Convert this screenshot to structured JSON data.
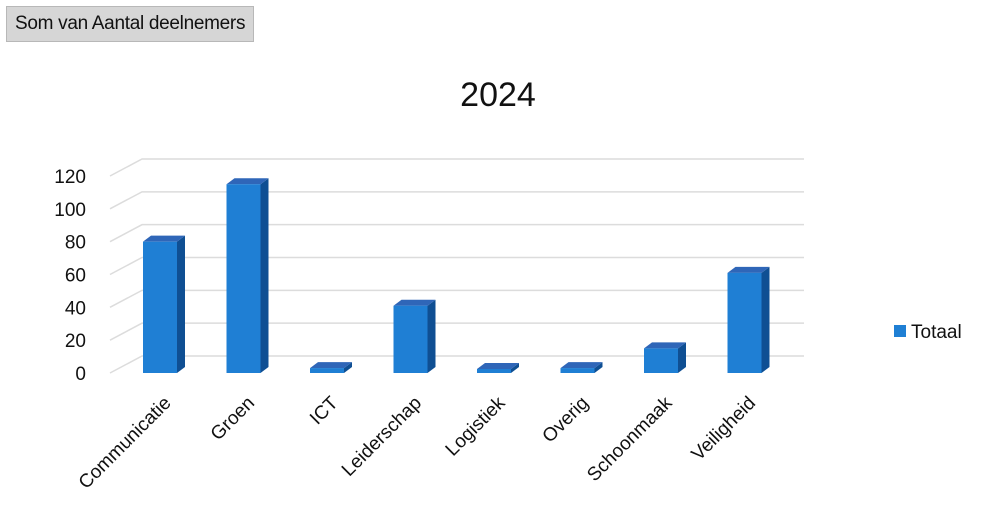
{
  "pivot_field_label": "Som van Aantal deelnemers",
  "chart_data": {
    "type": "bar",
    "title": "2024",
    "categories": [
      "Communicatie",
      "Groen",
      "ICT",
      "Leiderschap",
      "Logistiek",
      "Overig",
      "Schoonmaak",
      "Veiligheid"
    ],
    "series": [
      {
        "name": "Totaal",
        "values": [
          80,
          115,
          3,
          41,
          2,
          3,
          15,
          61
        ]
      }
    ],
    "ylim": [
      0,
      120
    ],
    "yticks": [
      0,
      20,
      40,
      60,
      80,
      100,
      120
    ],
    "grid": true,
    "legend_position": "right",
    "colors": {
      "bar_front": "#1f7fd4",
      "bar_side": "#0f4f93",
      "bar_top": "#2f66b8",
      "grid": "#dcdcdc"
    },
    "style": "3d-column"
  }
}
